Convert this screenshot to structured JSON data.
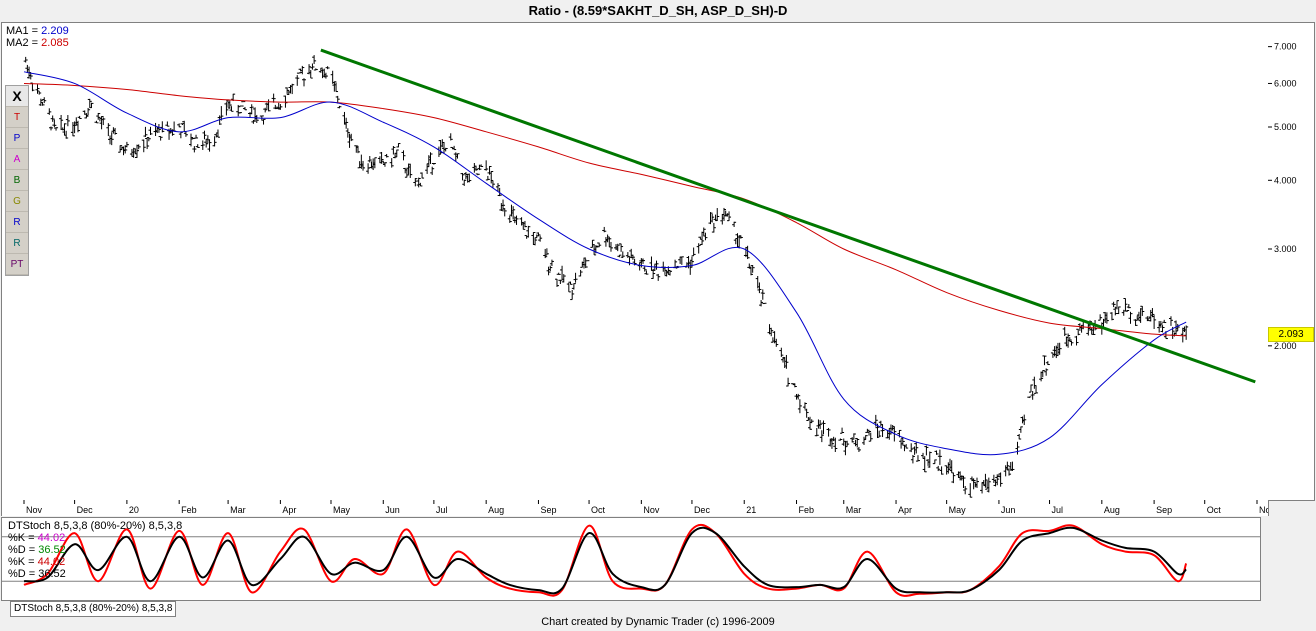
{
  "window": {
    "title": "Ratio - (8.59*SAKHT_D_SH, ASP_D_SH)-D"
  },
  "legend": {
    "ma1_label": "MA1 = ",
    "ma1_value": "2.209",
    "ma2_label": "MA2 = ",
    "ma2_value": "2.085",
    "ma1_color": "#0000cc",
    "ma2_color": "#cc0000"
  },
  "current_price": "2.093",
  "toolbar": {
    "tools": [
      {
        "name": "close-tool",
        "icon": "x-icon",
        "glyph": "X"
      },
      {
        "name": "trend-tool",
        "icon": "trendline-icon",
        "glyph": "T"
      },
      {
        "name": "parallel-tool",
        "icon": "parallel-lines-icon",
        "glyph": "P"
      },
      {
        "name": "ratio-tool-a",
        "icon": "ratio-a-icon",
        "glyph": "A"
      },
      {
        "name": "ratio-tool-b",
        "icon": "ratio-b-icon",
        "glyph": "B"
      },
      {
        "name": "ratio-tool-g",
        "icon": "ratio-g-icon",
        "glyph": "G"
      },
      {
        "name": "ratio-tool-r",
        "icon": "ratio-r-icon",
        "glyph": "R"
      },
      {
        "name": "ratio-tool-r2",
        "icon": "ratio-r2-icon",
        "glyph": "R"
      },
      {
        "name": "pt-tool",
        "icon": "pt-icon",
        "glyph": "PT"
      }
    ]
  },
  "stoch_legend": {
    "title": "DTStoch 8,5,3,8 (80%-20%) 8,5,3,8",
    "k1_label": "%K = ",
    "k1_value": "44.02",
    "k1_color": "#cc00cc",
    "d1_label": "%D = ",
    "d1_value": "36.52",
    "d1_color": "#008800",
    "k2_label": "%K = ",
    "k2_value": "44.02",
    "k2_color": "#cc0000",
    "d2_label": "%D = ",
    "d2_value": "36.52",
    "d2_color": "#000000"
  },
  "bottom_tab": "DTStoch 8,5,3,8 (80%-20%) 8,5,3,8",
  "credit": "Chart created by Dynamic Trader  (c) 1996-2009",
  "chart_data": [
    {
      "type": "bar",
      "subtype": "ohlc",
      "title": "Ratio - (8.59*SAKHT_D_SH, ASP_D_SH)-D",
      "y_scale": "log",
      "yticks": [
        "7.000",
        "6.000",
        "5.000",
        "4.000",
        "3.000",
        "2.000"
      ],
      "ytick_values": [
        7,
        6,
        5,
        4,
        3,
        2
      ],
      "ylim": [
        1.08,
        7.6
      ],
      "x_range": [
        "2019-11-01",
        "2021-11-01"
      ],
      "xtick_labels": [
        "Nov",
        "Dec",
        "20",
        "Feb",
        "Mar",
        "Apr",
        "May",
        "Jun",
        "Jul",
        "Aug",
        "Sep",
        "Oct",
        "Nov",
        "Dec",
        "21",
        "Feb",
        "Mar",
        "Apr",
        "May",
        "Jun",
        "Jul",
        "Aug",
        "Sep",
        "Oct",
        "No"
      ],
      "xtick_dates": [
        "2019-11-01",
        "2019-12-01",
        "2020-01-01",
        "2020-02-01",
        "2020-03-01",
        "2020-04-01",
        "2020-05-01",
        "2020-06-01",
        "2020-07-01",
        "2020-08-01",
        "2020-09-01",
        "2020-10-01",
        "2020-11-01",
        "2020-12-01",
        "2021-01-01",
        "2021-02-01",
        "2021-03-01",
        "2021-04-01",
        "2021-05-01",
        "2021-06-01",
        "2021-07-01",
        "2021-08-01",
        "2021-09-01",
        "2021-10-01",
        "2021-11-01"
      ],
      "price_series": {
        "name": "",
        "x": [
          "2019-11-01",
          "2019-11-10",
          "2019-11-20",
          "2019-12-01",
          "2019-12-10",
          "2019-12-20",
          "2020-01-01",
          "2020-01-10",
          "2020-01-20",
          "2020-02-01",
          "2020-02-10",
          "2020-02-20",
          "2020-03-01",
          "2020-03-10",
          "2020-03-20",
          "2020-04-01",
          "2020-04-10",
          "2020-04-20",
          "2020-05-01",
          "2020-05-10",
          "2020-05-20",
          "2020-06-01",
          "2020-06-10",
          "2020-06-20",
          "2020-07-01",
          "2020-07-10",
          "2020-07-20",
          "2020-08-01",
          "2020-08-10",
          "2020-08-20",
          "2020-09-01",
          "2020-09-10",
          "2020-09-20",
          "2020-10-01",
          "2020-10-10",
          "2020-10-20",
          "2020-11-01",
          "2020-11-10",
          "2020-11-20",
          "2020-12-01",
          "2020-12-10",
          "2020-12-20",
          "2021-01-01",
          "2021-01-10",
          "2021-01-20",
          "2021-02-01",
          "2021-02-10",
          "2021-02-20",
          "2021-03-01",
          "2021-03-10",
          "2021-03-20",
          "2021-04-01",
          "2021-04-10",
          "2021-04-20",
          "2021-05-01",
          "2021-05-10",
          "2021-05-20",
          "2021-06-01",
          "2021-06-10",
          "2021-06-20",
          "2021-07-01",
          "2021-07-10",
          "2021-07-20",
          "2021-08-01",
          "2021-08-10",
          "2021-08-20",
          "2021-09-01",
          "2021-09-10",
          "2021-09-20"
        ],
        "y": [
          6.7,
          5.7,
          4.9,
          5.1,
          5.5,
          4.9,
          4.5,
          4.7,
          4.9,
          5.0,
          4.7,
          4.7,
          5.5,
          5.4,
          5.2,
          5.6,
          6.0,
          6.5,
          6.2,
          5.0,
          4.3,
          4.3,
          4.5,
          3.9,
          4.4,
          4.7,
          4.0,
          4.2,
          3.7,
          3.3,
          3.1,
          2.75,
          2.55,
          2.9,
          3.2,
          2.95,
          2.8,
          2.75,
          2.8,
          2.85,
          3.3,
          3.5,
          3.0,
          2.5,
          2.0,
          1.65,
          1.45,
          1.38,
          1.35,
          1.33,
          1.42,
          1.38,
          1.28,
          1.25,
          1.22,
          1.13,
          1.1,
          1.15,
          1.22,
          1.65,
          1.9,
          2.05,
          2.15,
          2.2,
          2.35,
          2.3,
          2.25,
          2.15,
          2.1
        ]
      },
      "ma1": {
        "name": "MA1",
        "color": "#0000cc",
        "x": [
          "2019-11-01",
          "2019-12-01",
          "2020-01-01",
          "2020-02-01",
          "2020-03-01",
          "2020-04-01",
          "2020-05-01",
          "2020-06-01",
          "2020-07-01",
          "2020-08-01",
          "2020-09-01",
          "2020-10-01",
          "2020-11-01",
          "2020-12-01",
          "2021-01-01",
          "2021-02-01",
          "2021-03-01",
          "2021-04-01",
          "2021-05-01",
          "2021-06-01",
          "2021-07-01",
          "2021-08-01",
          "2021-09-01",
          "2021-09-20"
        ],
        "y": [
          6.3,
          6.0,
          5.3,
          4.9,
          5.2,
          5.2,
          5.55,
          5.1,
          4.6,
          3.95,
          3.4,
          3.0,
          2.8,
          2.8,
          3.0,
          2.3,
          1.6,
          1.38,
          1.3,
          1.27,
          1.36,
          1.7,
          2.05,
          2.209
        ]
      },
      "ma2": {
        "name": "MA2",
        "color": "#cc0000",
        "x": [
          "2019-11-01",
          "2019-12-01",
          "2020-01-01",
          "2020-02-01",
          "2020-03-01",
          "2020-04-01",
          "2020-05-01",
          "2020-06-01",
          "2020-07-01",
          "2020-08-01",
          "2020-09-01",
          "2020-10-01",
          "2020-11-01",
          "2020-12-01",
          "2021-01-01",
          "2021-02-01",
          "2021-03-01",
          "2021-04-01",
          "2021-05-01",
          "2021-06-01",
          "2021-07-01",
          "2021-08-01",
          "2021-09-01",
          "2021-09-20"
        ],
        "y": [
          6.0,
          5.95,
          5.85,
          5.7,
          5.6,
          5.55,
          5.55,
          5.4,
          5.2,
          4.9,
          4.6,
          4.3,
          4.1,
          3.9,
          3.7,
          3.35,
          3.0,
          2.75,
          2.5,
          2.32,
          2.2,
          2.15,
          2.1,
          2.085
        ]
      },
      "trendline": {
        "color": "#007700",
        "x": [
          "2020-04-25",
          "2021-10-31"
        ],
        "y": [
          6.9,
          1.72
        ]
      },
      "grid": false
    },
    {
      "type": "line",
      "title": "DTStoch 8,5,3,8 (80%-20%) 8,5,3,8",
      "ylim": [
        0,
        100
      ],
      "reference_lines": [
        80,
        20
      ],
      "series": [
        {
          "name": "%K",
          "color": "#ff0000",
          "x": [
            "2019-11-01",
            "2019-11-15",
            "2019-12-01",
            "2019-12-15",
            "2020-01-01",
            "2020-01-15",
            "2020-02-01",
            "2020-02-15",
            "2020-03-01",
            "2020-03-15",
            "2020-04-01",
            "2020-04-15",
            "2020-05-01",
            "2020-05-15",
            "2020-06-01",
            "2020-06-15",
            "2020-07-01",
            "2020-07-15",
            "2020-08-01",
            "2020-08-15",
            "2020-09-01",
            "2020-09-15",
            "2020-10-01",
            "2020-10-15",
            "2020-11-01",
            "2020-11-15",
            "2020-12-01",
            "2020-12-15",
            "2021-01-01",
            "2021-01-15",
            "2021-02-01",
            "2021-02-15",
            "2021-03-01",
            "2021-03-15",
            "2021-04-01",
            "2021-04-15",
            "2021-05-01",
            "2021-05-15",
            "2021-06-01",
            "2021-06-15",
            "2021-07-01",
            "2021-07-15",
            "2021-08-01",
            "2021-08-15",
            "2021-09-01",
            "2021-09-15",
            "2021-09-20"
          ],
          "y": [
            15,
            30,
            85,
            20,
            90,
            10,
            88,
            15,
            85,
            5,
            60,
            90,
            20,
            50,
            30,
            90,
            15,
            60,
            25,
            10,
            5,
            8,
            95,
            20,
            10,
            15,
            90,
            85,
            30,
            10,
            10,
            15,
            10,
            60,
            5,
            3,
            5,
            8,
            40,
            85,
            88,
            95,
            70,
            60,
            55,
            20,
            44
          ]
        },
        {
          "name": "%D",
          "color": "#000000",
          "x": [
            "2019-11-01",
            "2019-11-15",
            "2019-12-01",
            "2019-12-15",
            "2020-01-01",
            "2020-01-15",
            "2020-02-01",
            "2020-02-15",
            "2020-03-01",
            "2020-03-15",
            "2020-04-01",
            "2020-04-15",
            "2020-05-01",
            "2020-05-15",
            "2020-06-01",
            "2020-06-15",
            "2020-07-01",
            "2020-07-15",
            "2020-08-01",
            "2020-08-15",
            "2020-09-01",
            "2020-09-15",
            "2020-10-01",
            "2020-10-15",
            "2020-11-01",
            "2020-11-15",
            "2020-12-01",
            "2020-12-15",
            "2021-01-01",
            "2021-01-15",
            "2021-02-01",
            "2021-02-15",
            "2021-03-01",
            "2021-03-15",
            "2021-04-01",
            "2021-04-15",
            "2021-05-01",
            "2021-05-15",
            "2021-06-01",
            "2021-06-15",
            "2021-07-01",
            "2021-07-15",
            "2021-08-01",
            "2021-08-15",
            "2021-09-01",
            "2021-09-15",
            "2021-09-20"
          ],
          "y": [
            20,
            25,
            70,
            35,
            80,
            20,
            80,
            25,
            75,
            15,
            50,
            80,
            30,
            45,
            35,
            80,
            25,
            50,
            30,
            15,
            8,
            10,
            85,
            30,
            12,
            15,
            85,
            85,
            40,
            15,
            12,
            15,
            12,
            50,
            10,
            5,
            5,
            8,
            35,
            75,
            85,
            92,
            75,
            65,
            60,
            30,
            36
          ]
        }
      ]
    }
  ]
}
